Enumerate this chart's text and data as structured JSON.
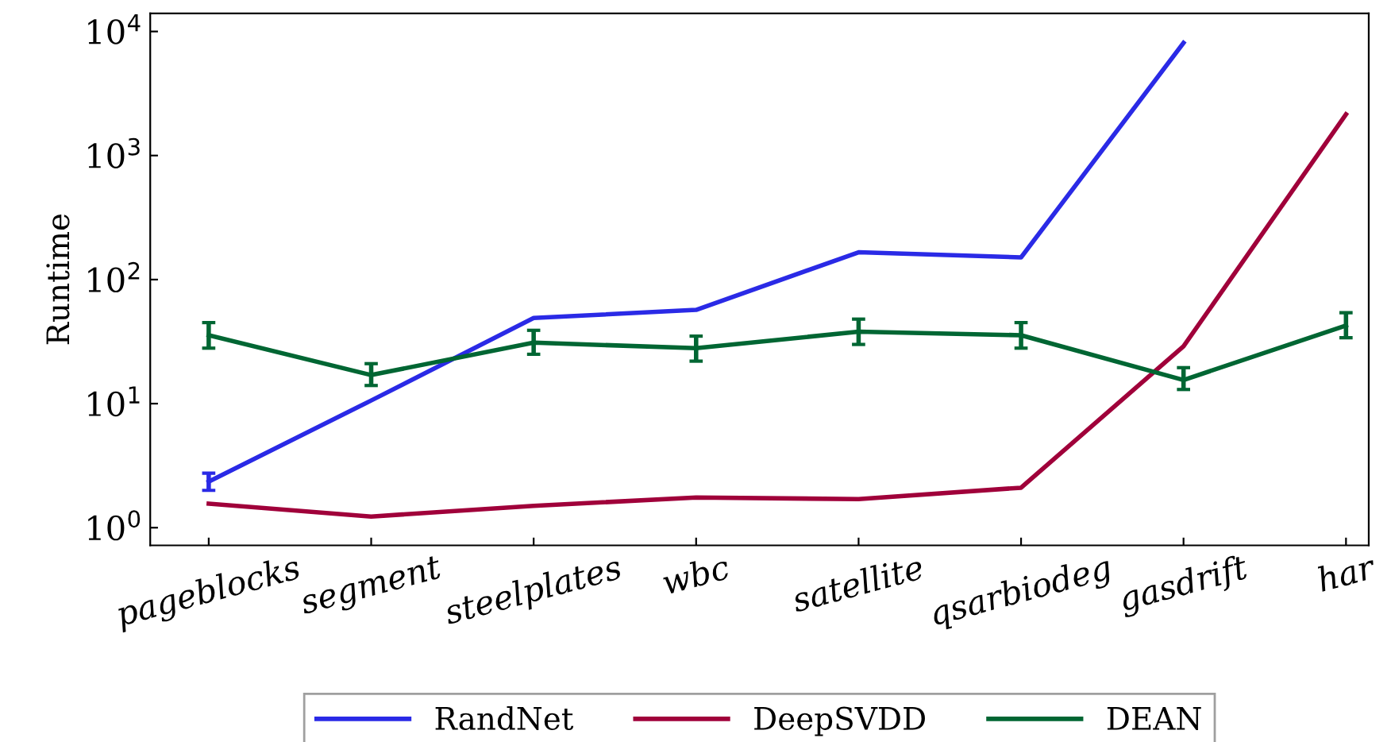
{
  "chart_data": {
    "type": "line",
    "ylabel": "Runtime",
    "log": true,
    "categories": [
      "pageblocks",
      "segment",
      "steelplates",
      "wbc",
      "satellite",
      "qsarbiodeg",
      "gasdrift",
      "har"
    ],
    "ylim": [
      0.72,
      14000
    ],
    "yticks": [
      {
        "value": 1,
        "label": "10$^{0}$"
      },
      {
        "value": 10,
        "label": "10$^{1}$"
      },
      {
        "value": 100,
        "label": "10$^{2}$"
      },
      {
        "value": 1000,
        "label": "10$^{3}$"
      },
      {
        "value": 10000,
        "label": "10$^{4}$"
      }
    ],
    "series": [
      {
        "name": "RandNet",
        "color": "#2a2ae6",
        "values": [
          2.35,
          10.6,
          49,
          57,
          166,
          151,
          8100,
          null
        ],
        "errors": [
          [
            2.0,
            2.75
          ],
          null,
          null,
          null,
          null,
          null,
          null,
          null
        ]
      },
      {
        "name": "DeepSVDD",
        "color": "#a0003a",
        "values": [
          1.56,
          1.23,
          1.5,
          1.75,
          1.7,
          2.1,
          29,
          2150
        ]
      },
      {
        "name": "DEAN",
        "color": "#006633",
        "values": [
          35.6,
          17,
          31,
          28,
          38,
          35.6,
          15.5,
          42.6
        ],
        "errors": [
          [
            28,
            45
          ],
          [
            14,
            21
          ],
          [
            25,
            39
          ],
          [
            22,
            35
          ],
          [
            30,
            48
          ],
          [
            28,
            45
          ],
          [
            13,
            19.5
          ],
          [
            34,
            54
          ]
        ]
      }
    ],
    "grid": false,
    "legend": "bottom",
    "marker": "none",
    "line_style": "solid"
  }
}
